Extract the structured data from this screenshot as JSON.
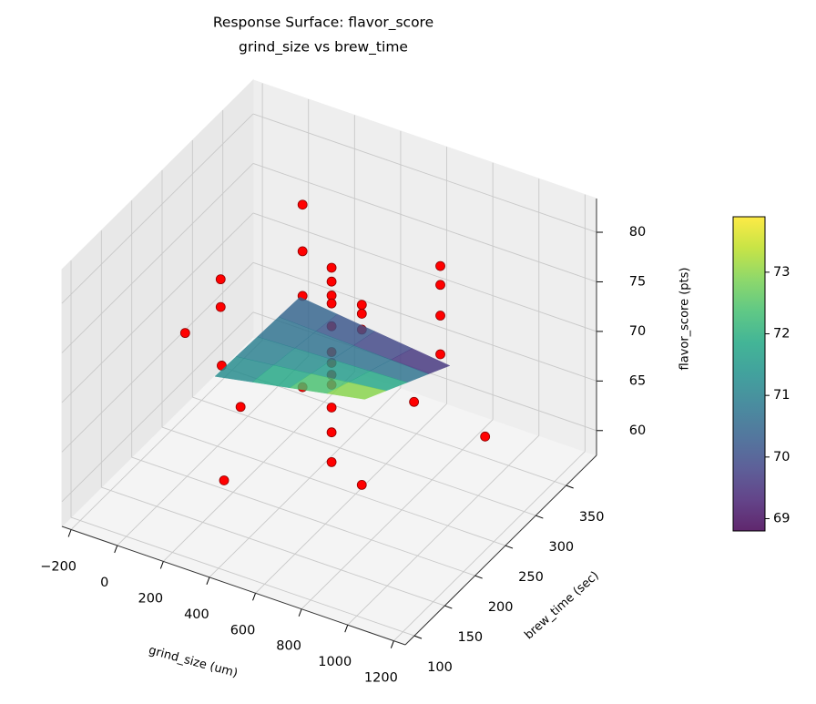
{
  "chart_data": {
    "type": "surface3d",
    "title": "Response Surface: flavor_score",
    "subtitle": "grind_size vs brew_time",
    "x_label": "grind_size (um)",
    "y_label": "brew_time (sec)",
    "z_label": "flavor_score (pts)",
    "xlim": [
      -240,
      1250
    ],
    "ylim": [
      85,
      400
    ],
    "zlim": [
      57.5,
      83.4
    ],
    "xticks": [
      {
        "value": -200,
        "label": "−200"
      },
      0,
      200,
      400,
      600,
      800,
      1000,
      1200
    ],
    "yticks": [
      100,
      150,
      200,
      250,
      300,
      350
    ],
    "zticks": [
      60,
      65,
      70,
      75,
      80
    ],
    "grid": true,
    "points": {
      "color": "#ff0000",
      "edge_color": "#8b0000",
      "x": [
        185,
        185,
        185,
        185,
        535,
        535,
        535,
        535,
        535,
        535,
        535,
        535,
        535,
        535,
        535,
        535,
        495,
        495,
        495,
        625,
        625,
        625,
        625,
        -65,
        -65,
        -140,
        45,
        285,
        985,
        1030,
        345,
        890
      ],
      "y": [
        320,
        320,
        320,
        320,
        235,
        235,
        235,
        235,
        235,
        235,
        235,
        235,
        235,
        235,
        235,
        235,
        300,
        300,
        300,
        380,
        380,
        380,
        380,
        280,
        280,
        250,
        240,
        180,
        200,
        300,
        130,
        150
      ],
      "z": [
        79.1,
        74.4,
        69.9,
        60.7,
        80.7,
        79.3,
        77.9,
        77.1,
        74.8,
        72.2,
        71.1,
        69.9,
        68.9,
        66.6,
        64.1,
        61.1,
        72.7,
        71.8,
        70.2,
        72.8,
        70.9,
        67.8,
        63.9,
        72.0,
        69.2,
        67.8,
        66.6,
        68.0,
        72.9,
        63.7,
        64.1,
        66.8
      ]
    },
    "surface": {
      "colormap": "viridis",
      "x": [
        200,
        362.5,
        525,
        687.5,
        850
      ],
      "y": [
        170,
        205,
        240,
        275,
        310
      ],
      "z": [
        [
          71,
          71.73,
          72.45,
          73.18,
          73.9
        ],
        [
          70.88,
          71.31,
          71.75,
          72.19,
          72.63
        ],
        [
          70.75,
          70.9,
          71.05,
          71.2,
          71.35
        ],
        [
          70.63,
          70.49,
          70.35,
          70.21,
          70.08
        ],
        [
          70.5,
          70.08,
          69.65,
          69.23,
          68.8
        ]
      ]
    },
    "colorbar": {
      "lim": [
        68.8,
        73.9
      ],
      "ticks": [
        69,
        70,
        71,
        72,
        73
      ]
    }
  }
}
